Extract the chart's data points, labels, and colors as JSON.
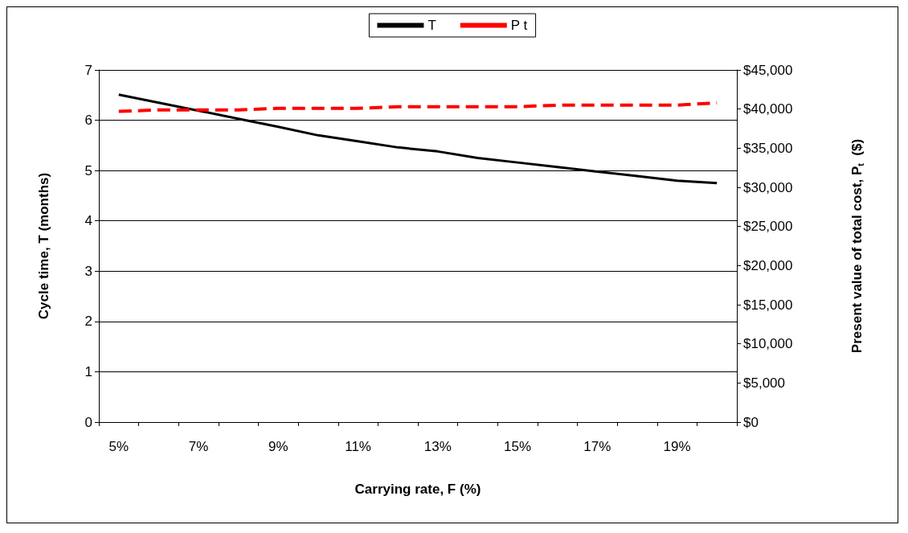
{
  "chart_data": {
    "type": "line",
    "xlabel": "Carrying rate, F (%)",
    "ylabel": "Cycle time, T (months)",
    "y2label": "Present value of total cost, P$_{t}$  ($)",
    "categories": [
      "5%",
      null,
      "7%",
      null,
      "9%",
      null,
      "11%",
      null,
      "13%",
      null,
      "15%",
      null,
      "17%",
      null,
      "19%",
      null
    ],
    "series": [
      {
        "name": "T",
        "color": "#000000",
        "line_style": "solid",
        "values": [
          6.51,
          6.35,
          6.19,
          6.03,
          5.87,
          5.7,
          5.58,
          5.46,
          5.38,
          5.25,
          5.16,
          5.07,
          4.98,
          4.89,
          4.8,
          4.75
        ]
      },
      {
        "name": "P t",
        "color": "#ff0000",
        "line_style": "dashed",
        "axis": "y2",
        "values": [
          39700,
          39900,
          39900,
          39900,
          40100,
          40100,
          40100,
          40300,
          40300,
          40300,
          40300,
          40500,
          40500,
          40500,
          40500,
          40800
        ]
      }
    ],
    "ylim": [
      0,
      7
    ],
    "yticks": [
      0,
      1,
      2,
      3,
      4,
      5,
      6,
      7
    ],
    "y2lim": [
      0,
      45000
    ],
    "y2ticks": [
      {
        "value": 0,
        "label": "$0"
      },
      {
        "value": 5000,
        "label": "$5,000"
      },
      {
        "value": 10000,
        "label": "$10,000"
      },
      {
        "value": 15000,
        "label": "$15,000"
      },
      {
        "value": 20000,
        "label": "$20,000"
      },
      {
        "value": 25000,
        "label": "$25,000"
      },
      {
        "value": 30000,
        "label": "$30,000"
      },
      {
        "value": 35000,
        "label": "$35,000"
      },
      {
        "value": 40000,
        "label": "$40,000"
      },
      {
        "value": 45000,
        "label": "$45,000"
      }
    ],
    "grid": "y",
    "legend": "top",
    "marker": "none"
  }
}
